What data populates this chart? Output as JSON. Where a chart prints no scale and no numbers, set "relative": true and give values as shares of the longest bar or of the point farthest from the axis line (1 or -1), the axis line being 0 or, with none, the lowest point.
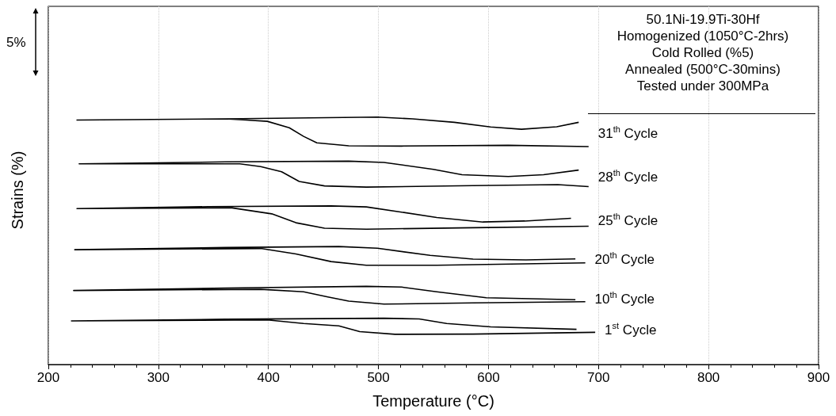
{
  "chart_data": {
    "type": "line",
    "xlabel": "Temperature (°C)",
    "ylabel": "Strains (%)",
    "relative": true,
    "xlim": [
      200,
      900
    ],
    "xticks": [
      200,
      300,
      400,
      500,
      600,
      700,
      800,
      900
    ],
    "grid": "x",
    "marker": "none",
    "line_style": "solid",
    "annotations": [
      "5%",
      "50.1Ni-19.9Ti-30Hf",
      "Homogenized (1050°C-2hrs)",
      "Cold Rolled (%5)",
      "Annealed (500°C-30mins)",
      "Tested under 300MPa"
    ],
    "series": [
      {
        "name": "31$^{th}$ Cycle",
        "color": "#000000",
        "x": [
          691,
          618,
          521,
          473,
          444,
          432,
          419,
          399,
          380,
          361,
          226,
          361,
          499,
          531,
          569,
          602,
          630,
          662,
          682
        ],
        "values": [
          0.881,
          0.886,
          0.883,
          0.884,
          0.896,
          0.922,
          0.957,
          0.983,
          0.988,
          0.993,
          0.988,
          0.993,
          1.0,
          0.993,
          0.979,
          0.96,
          0.951,
          0.961,
          0.979
        ]
      },
      {
        "name": "28$^{th}$ Cycle",
        "color": "#000000",
        "x": [
          691,
          663,
          586,
          489,
          451,
          428,
          412,
          393,
          374,
          228,
          361,
          473,
          505,
          550,
          576,
          618,
          650,
          682
        ],
        "values": [
          0.719,
          0.727,
          0.723,
          0.717,
          0.722,
          0.74,
          0.779,
          0.8,
          0.811,
          0.811,
          0.819,
          0.822,
          0.817,
          0.789,
          0.767,
          0.76,
          0.767,
          0.786
        ]
      },
      {
        "name": "25$^{th}$ Cycle",
        "color": "#000000",
        "x": [
          691,
          586,
          489,
          451,
          425,
          403,
          367,
          226,
          345,
          457,
          489,
          521,
          553,
          595,
          633,
          675
        ],
        "values": [
          0.559,
          0.553,
          0.547,
          0.551,
          0.573,
          0.609,
          0.633,
          0.63,
          0.638,
          0.641,
          0.637,
          0.616,
          0.594,
          0.576,
          0.58,
          0.591
        ]
      },
      {
        "name": "20$^{th}$ Cycle",
        "color": "#000000",
        "x": [
          688,
          553,
          489,
          457,
          425,
          393,
          224,
          361,
          464,
          499,
          547,
          586,
          634,
          679
        ],
        "values": [
          0.411,
          0.401,
          0.401,
          0.416,
          0.447,
          0.469,
          0.464,
          0.473,
          0.477,
          0.47,
          0.441,
          0.426,
          0.423,
          0.427
        ]
      },
      {
        "name": "10$^{th}$ Cycle",
        "color": "#000000",
        "x": [
          688,
          586,
          505,
          473,
          454,
          432,
          393,
          223,
          361,
          489,
          521,
          553,
          598,
          679
        ],
        "values": [
          0.254,
          0.249,
          0.244,
          0.256,
          0.273,
          0.294,
          0.304,
          0.299,
          0.309,
          0.316,
          0.313,
          0.294,
          0.27,
          0.262
        ]
      },
      {
        "name": "1$^{st}$ Cycle",
        "color": "#000000",
        "x": [
          697,
          586,
          515,
          483,
          464,
          432,
          399,
          221,
          361,
          505,
          537,
          562,
          602,
          680
        ],
        "values": [
          0.13,
          0.123,
          0.122,
          0.133,
          0.156,
          0.166,
          0.18,
          0.176,
          0.183,
          0.187,
          0.184,
          0.166,
          0.152,
          0.142
        ]
      }
    ]
  }
}
